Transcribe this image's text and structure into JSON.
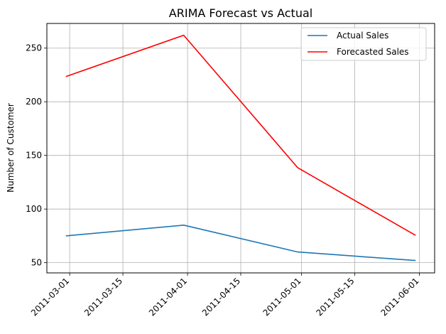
{
  "chart_data": {
    "type": "line",
    "title": "ARIMA Forecast vs Actual",
    "xlabel": "",
    "ylabel": "Number of Customer",
    "x": [
      "2011-02-28",
      "2011-03-31",
      "2011-04-30",
      "2011-05-31"
    ],
    "series": [
      {
        "name": "Actual Sales",
        "values": [
          75,
          85,
          60,
          52
        ],
        "color": "#1f77b4"
      },
      {
        "name": "Forecasted Sales",
        "values": [
          223.5,
          262,
          138.5,
          75.5
        ],
        "color": "#ff0000"
      }
    ],
    "xticks": [
      "2011-03-01",
      "2011-03-15",
      "2011-04-01",
      "2011-04-15",
      "2011-05-01",
      "2011-05-15",
      "2011-06-01"
    ],
    "yticks": [
      50,
      100,
      150,
      200,
      250
    ],
    "xlim": [
      "2011-02-23",
      "2011-06-05"
    ],
    "ylim": [
      40.5,
      273
    ],
    "grid": true,
    "legend_position": "top-right",
    "x_tick_rotation": 45
  }
}
